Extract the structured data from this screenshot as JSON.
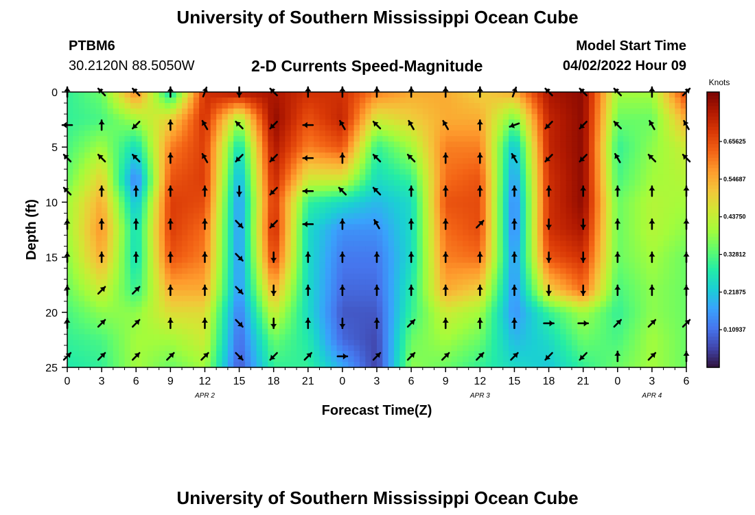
{
  "header": {
    "title": "University of Southern Mississippi Ocean Cube",
    "station": "PTBM6",
    "coords": "30.2120N  88.5050W",
    "subtitle": "2-D Currents Speed-Magnitude",
    "start_label": "Model Start Time",
    "start_value": "04/02/2022 Hour 09"
  },
  "footer": {
    "title": "University of Southern Mississippi Ocean Cube"
  },
  "chart_data": {
    "type": "heatmap",
    "xlabel": "Forecast Time(Z)",
    "ylabel": "Depth (ft)",
    "xlim": [
      0,
      54
    ],
    "ylim": [
      0,
      25
    ],
    "y_inverted": true,
    "x_ticks": [
      0,
      3,
      6,
      9,
      12,
      15,
      18,
      21,
      24,
      27,
      30,
      33,
      36,
      39,
      42,
      45,
      48,
      51,
      54
    ],
    "x_tick_labels": [
      "0",
      "3",
      "6",
      "9",
      "12",
      "15",
      "18",
      "21",
      "0",
      "3",
      "6",
      "9",
      "12",
      "15",
      "18",
      "21",
      "0",
      "3",
      "6"
    ],
    "y_ticks": [
      0,
      5,
      10,
      15,
      20,
      25
    ],
    "y_tick_labels": [
      "0",
      "5",
      "10",
      "15",
      "20",
      "25"
    ],
    "date_labels": [
      {
        "label": "APR 2",
        "x": 12
      },
      {
        "label": "APR 3",
        "x": 36
      },
      {
        "label": "APR 4",
        "x": 51
      }
    ],
    "colorbar": {
      "label": "Knots",
      "range": [
        0.0,
        0.8
      ],
      "ticks": [
        0.10937,
        0.21875,
        0.32812,
        0.4375,
        0.54687,
        0.65625
      ],
      "tick_labels": [
        "0.10937",
        "0.21875",
        "0.32812",
        "0.43750",
        "0.54687",
        "0.65625"
      ],
      "palette": [
        "#30123b",
        "#4145ab",
        "#4675ed",
        "#39a2fc",
        "#1bcfd4",
        "#24eca6",
        "#61fc6c",
        "#a4fc3b",
        "#d1e834",
        "#f3c63a",
        "#fe9b2d",
        "#f36315",
        "#d93806",
        "#b11901",
        "#7a0402"
      ]
    },
    "speed_profiles_y": [
      0,
      2.5,
      5,
      8,
      10,
      12.5,
      15,
      18,
      20,
      22.5,
      25
    ],
    "speed_profiles": [
      {
        "x": 0,
        "values": [
          0.3,
          0.3,
          0.32,
          0.35,
          0.4,
          0.4,
          0.38,
          0.35,
          0.32,
          0.3,
          0.28
        ]
      },
      {
        "x": 3,
        "values": [
          0.35,
          0.32,
          0.4,
          0.5,
          0.55,
          0.58,
          0.55,
          0.45,
          0.38,
          0.32,
          0.3
        ]
      },
      {
        "x": 6,
        "values": [
          0.6,
          0.4,
          0.25,
          0.12,
          0.2,
          0.25,
          0.25,
          0.3,
          0.38,
          0.4,
          0.4
        ]
      },
      {
        "x": 9,
        "values": [
          0.25,
          0.5,
          0.6,
          0.65,
          0.68,
          0.68,
          0.65,
          0.55,
          0.48,
          0.4,
          0.35
        ]
      },
      {
        "x": 12,
        "values": [
          0.7,
          0.7,
          0.68,
          0.68,
          0.66,
          0.62,
          0.6,
          0.55,
          0.48,
          0.45,
          0.4
        ]
      },
      {
        "x": 15,
        "values": [
          0.75,
          0.4,
          0.25,
          0.18,
          0.15,
          0.15,
          0.15,
          0.15,
          0.12,
          0.1,
          0.08
        ]
      },
      {
        "x": 18,
        "values": [
          0.75,
          0.78,
          0.75,
          0.72,
          0.7,
          0.72,
          0.68,
          0.55,
          0.45,
          0.35,
          0.3
        ]
      },
      {
        "x": 21,
        "values": [
          0.7,
          0.65,
          0.6,
          0.45,
          0.3,
          0.25,
          0.25,
          0.25,
          0.25,
          0.28,
          0.3
        ]
      },
      {
        "x": 24,
        "values": [
          0.7,
          0.72,
          0.65,
          0.45,
          0.25,
          0.15,
          0.12,
          0.1,
          0.08,
          0.1,
          0.18
        ]
      },
      {
        "x": 27,
        "values": [
          0.6,
          0.45,
          0.3,
          0.25,
          0.2,
          0.15,
          0.12,
          0.1,
          0.08,
          0.06,
          0.05
        ]
      },
      {
        "x": 30,
        "values": [
          0.55,
          0.5,
          0.4,
          0.3,
          0.25,
          0.25,
          0.25,
          0.28,
          0.3,
          0.35,
          0.38
        ]
      },
      {
        "x": 33,
        "values": [
          0.55,
          0.55,
          0.6,
          0.62,
          0.65,
          0.62,
          0.6,
          0.55,
          0.45,
          0.4,
          0.35
        ]
      },
      {
        "x": 36,
        "values": [
          0.5,
          0.55,
          0.6,
          0.65,
          0.66,
          0.66,
          0.62,
          0.5,
          0.4,
          0.35,
          0.3
        ]
      },
      {
        "x": 39,
        "values": [
          0.55,
          0.35,
          0.2,
          0.15,
          0.12,
          0.12,
          0.15,
          0.15,
          0.15,
          0.2,
          0.25
        ]
      },
      {
        "x": 42,
        "values": [
          0.75,
          0.72,
          0.72,
          0.7,
          0.7,
          0.7,
          0.65,
          0.5,
          0.3,
          0.25,
          0.22
        ]
      },
      {
        "x": 45,
        "values": [
          0.78,
          0.78,
          0.78,
          0.78,
          0.78,
          0.75,
          0.7,
          0.62,
          0.4,
          0.35,
          0.3
        ]
      },
      {
        "x": 48,
        "values": [
          0.4,
          0.35,
          0.3,
          0.32,
          0.35,
          0.35,
          0.35,
          0.32,
          0.3,
          0.32,
          0.35
        ]
      },
      {
        "x": 51,
        "values": [
          0.4,
          0.35,
          0.38,
          0.4,
          0.42,
          0.42,
          0.4,
          0.38,
          0.38,
          0.4,
          0.4
        ]
      },
      {
        "x": 54,
        "values": [
          0.68,
          0.55,
          0.45,
          0.42,
          0.4,
          0.38,
          0.35,
          0.35,
          0.35,
          0.35,
          0.35
        ]
      }
    ],
    "vector_times": [
      0,
      3,
      6,
      9,
      12,
      15,
      18,
      21,
      24,
      27,
      30,
      33,
      36,
      39,
      42,
      45,
      48,
      51,
      54
    ],
    "vector_depths": [
      0,
      3,
      6,
      9,
      12,
      15,
      18,
      21,
      24
    ],
    "vector_directions_deg": [
      [
        0,
        315,
        315,
        0,
        20,
        180,
        315,
        0,
        0,
        0,
        0,
        0,
        0,
        20,
        315,
        315,
        315,
        0,
        45
      ],
      [
        270,
        0,
        225,
        0,
        330,
        315,
        225,
        270,
        330,
        315,
        330,
        330,
        0,
        250,
        225,
        225,
        315,
        330,
        330
      ],
      [
        315,
        315,
        315,
        0,
        330,
        225,
        225,
        270,
        0,
        315,
        315,
        0,
        0,
        330,
        225,
        225,
        330,
        315,
        315
      ],
      [
        315,
        0,
        0,
        0,
        0,
        180,
        225,
        270,
        315,
        315,
        0,
        0,
        0,
        0,
        0,
        0,
        0,
        0,
        0
      ],
      [
        0,
        0,
        0,
        0,
        0,
        135,
        225,
        270,
        0,
        330,
        0,
        0,
        45,
        0,
        180,
        180,
        0,
        0,
        0
      ],
      [
        0,
        0,
        0,
        0,
        0,
        135,
        180,
        0,
        0,
        0,
        0,
        0,
        0,
        0,
        180,
        180,
        0,
        0,
        0
      ],
      [
        0,
        45,
        45,
        0,
        0,
        135,
        180,
        0,
        0,
        0,
        0,
        0,
        0,
        0,
        180,
        180,
        0,
        0,
        0
      ],
      [
        0,
        45,
        45,
        0,
        0,
        135,
        180,
        0,
        180,
        0,
        45,
        0,
        0,
        0,
        90,
        90,
        45,
        45,
        45
      ],
      [
        45,
        45,
        45,
        45,
        45,
        135,
        225,
        45,
        90,
        45,
        45,
        45,
        45,
        45,
        225,
        225,
        0,
        45,
        0
      ]
    ]
  }
}
